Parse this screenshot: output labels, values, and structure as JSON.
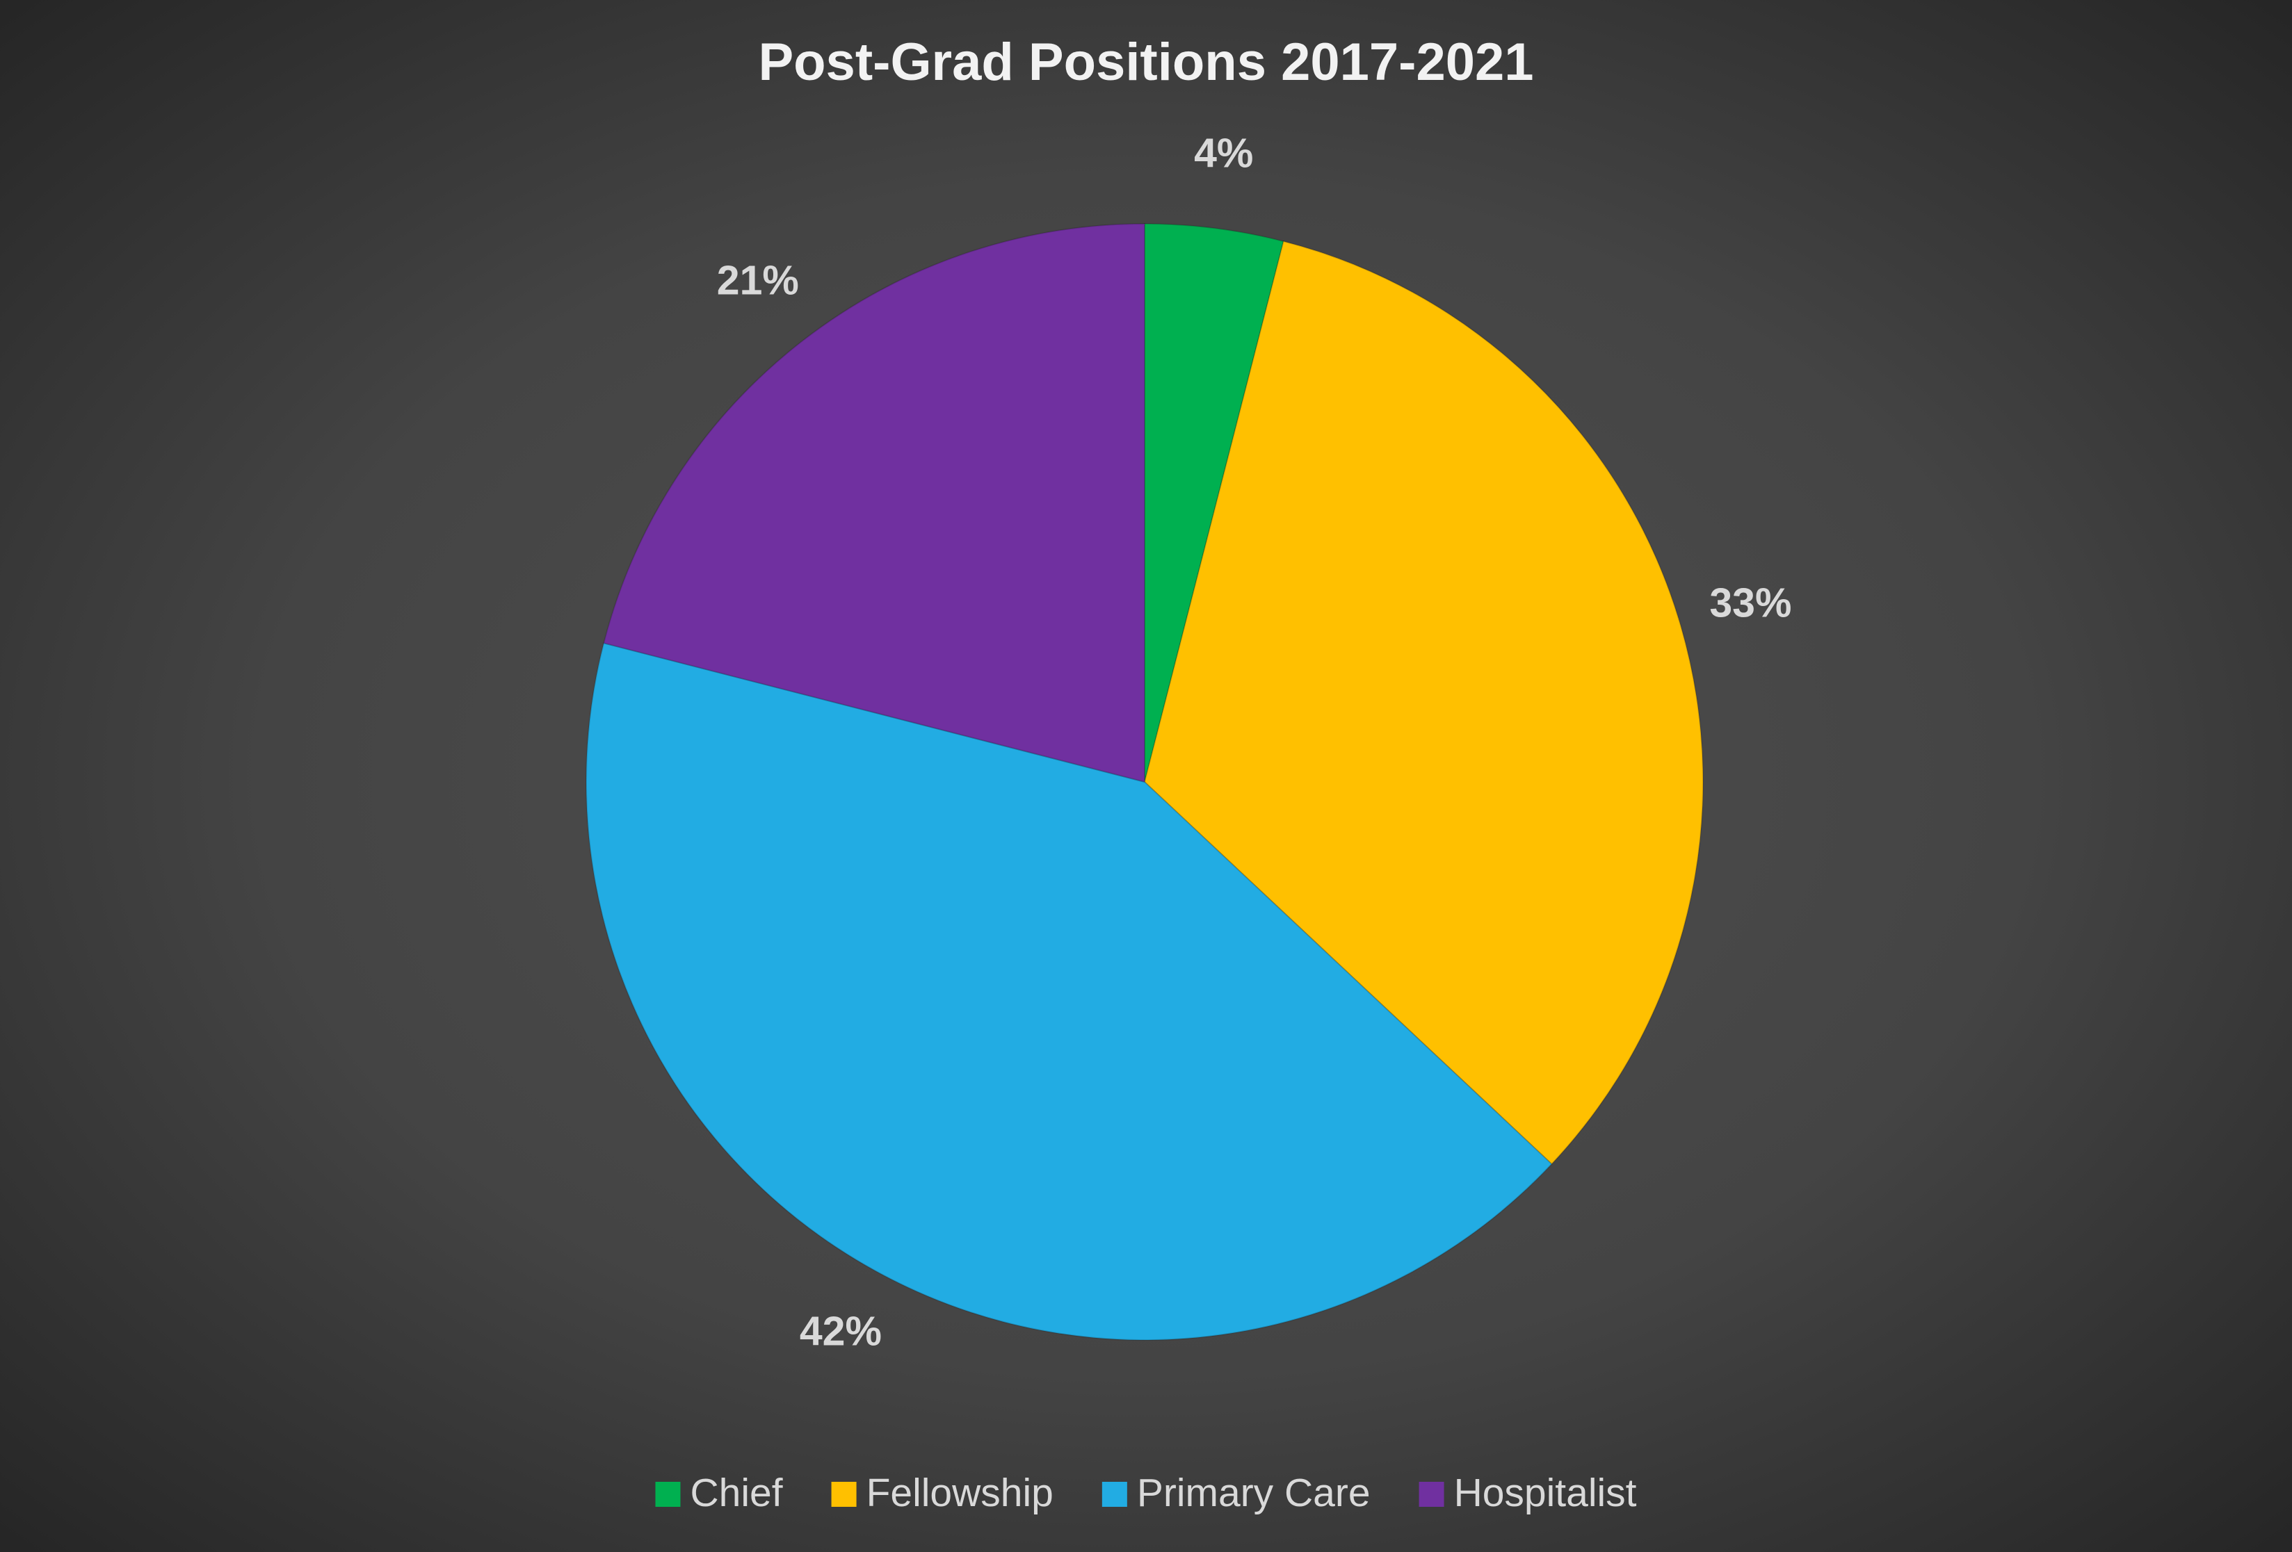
{
  "chart_data": {
    "type": "pie",
    "title": "Post-Grad Positions 2017-2021",
    "categories": [
      "Chief",
      "Fellowship",
      "Primary Care",
      "Hospitalist"
    ],
    "values": [
      4,
      33,
      42,
      21
    ],
    "value_labels": [
      "4%",
      "33%",
      "42%",
      "21%"
    ],
    "colors": [
      "#00b050",
      "#ffc000",
      "#22ace3",
      "#7030a0"
    ],
    "legend": "bottom"
  }
}
